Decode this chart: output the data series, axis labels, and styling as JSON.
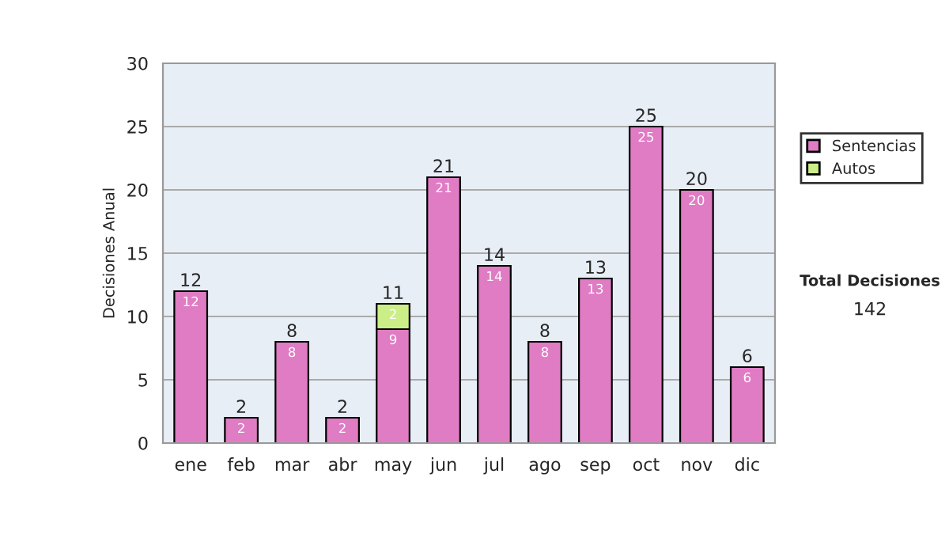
{
  "chart_data": {
    "type": "bar",
    "stacked": true,
    "ylabel": "Decisiones Anual",
    "categories": [
      "ene",
      "feb",
      "mar",
      "abr",
      "may",
      "jun",
      "jul",
      "ago",
      "sep",
      "oct",
      "nov",
      "dic"
    ],
    "series": [
      {
        "name": "Sentencias",
        "color": "#e07cc4",
        "values": [
          12,
          2,
          8,
          2,
          9,
          21,
          14,
          8,
          13,
          25,
          20,
          6
        ],
        "value_labels": [
          "12",
          "2",
          "8",
          "2",
          "9",
          "21",
          "14",
          "8",
          "13",
          "25",
          "20",
          "6"
        ]
      },
      {
        "name": "Autos",
        "color": "#ccee88",
        "values": [
          0,
          0,
          0,
          0,
          2,
          0,
          0,
          0,
          0,
          0,
          0,
          0
        ],
        "value_labels": [
          null,
          null,
          null,
          null,
          "2",
          null,
          null,
          null,
          null,
          null,
          null,
          null
        ]
      }
    ],
    "totals": [
      "12",
      "2",
      "8",
      "2",
      "11",
      "21",
      "14",
      "8",
      "13",
      "25",
      "20",
      "6"
    ],
    "ylim": [
      0,
      30
    ],
    "yticks": [
      0,
      5,
      10,
      15,
      20,
      25,
      30
    ],
    "grid": "y",
    "legend": "right",
    "annotations": [
      "Total Decisiones",
      "142"
    ]
  }
}
